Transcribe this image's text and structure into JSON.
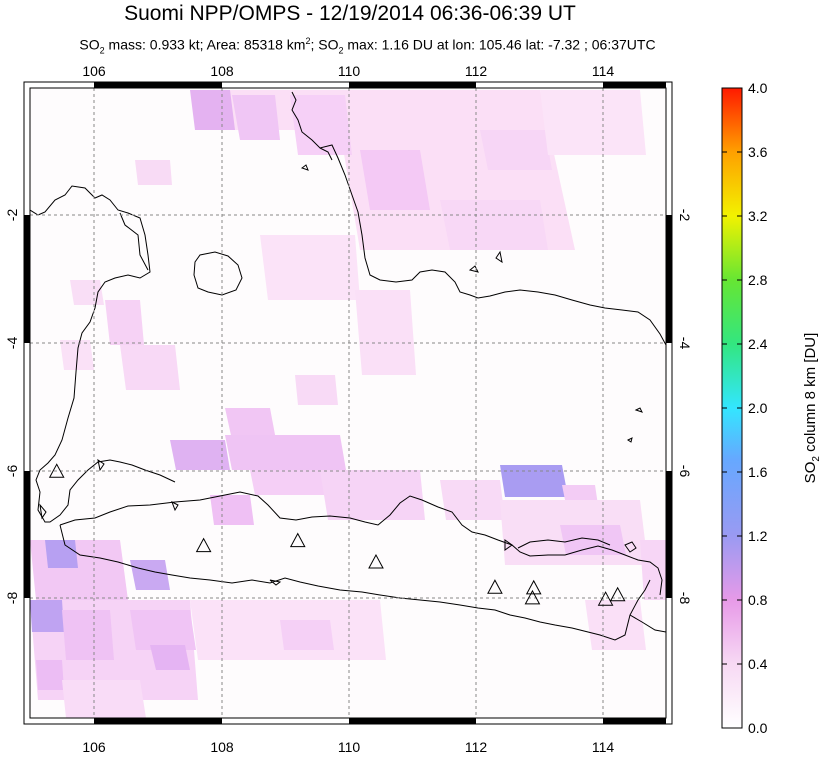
{
  "title": "Suomi NPP/OMPS - 12/19/2014 06:36-06:39 UT",
  "subtitle": {
    "p1": "SO",
    "p1sub": "2",
    "p2": " mass: 0.933 kt; Area: 85318 km",
    "p2sup": "2",
    "p3": "; SO",
    "p3sub": "2",
    "p4": " max: 1.16 DU at lon: 105.46 lat: -7.32 ; 06:37UTC"
  },
  "map": {
    "lon_range": [
      105.0,
      115.0
    ],
    "lat_range": [
      -10.0,
      0.0
    ],
    "lon_ticks": [
      "106",
      "108",
      "110",
      "112",
      "114"
    ],
    "lat_ticks": [
      "-2",
      "-4",
      "-6",
      "-8"
    ],
    "gridlines": "dotted"
  },
  "colorbar": {
    "label_main": "SO",
    "label_sub": "2",
    "label_rest": " column 8 km [DU]",
    "ticks": [
      "4.0",
      "3.6",
      "3.2",
      "2.8",
      "2.4",
      "2.0",
      "1.6",
      "1.2",
      "0.8",
      "0.4",
      "0.0"
    ],
    "range": [
      0.0,
      4.0
    ],
    "colors": [
      "#ffffff",
      "#f3c8f2",
      "#9a9af2",
      "#33ccff",
      "#33e633",
      "#ffff00",
      "#ff8000",
      "#ff0000"
    ]
  },
  "volcano_marker": "triangle-outline",
  "volcanoes": [
    {
      "lon": 105.42,
      "lat": -6.1
    },
    {
      "lon": 107.73,
      "lat": -7.28
    },
    {
      "lon": 109.21,
      "lat": -7.2
    },
    {
      "lon": 110.44,
      "lat": -7.54
    },
    {
      "lon": 112.31,
      "lat": -7.94
    },
    {
      "lon": 112.92,
      "lat": -7.95
    },
    {
      "lon": 112.9,
      "lat": -8.11
    },
    {
      "lon": 114.05,
      "lat": -8.13
    },
    {
      "lon": 114.24,
      "lat": -8.06
    }
  ]
}
